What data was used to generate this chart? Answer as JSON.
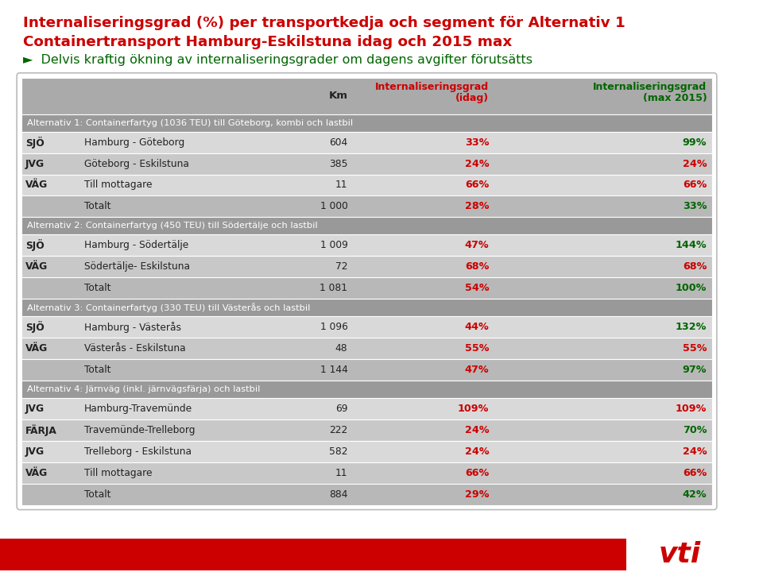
{
  "title_line1": "Internaliseringsgrad (%) per transportkedja och segment för Alternativ 1",
  "title_line2": "Containertransport Hamburg-Eskilstuna idag och 2015 max",
  "subtitle": "►  Delvis kraftig ökning av internaliseringsgrader om dagens avgifter förutsätts",
  "title_color": "#cc0000",
  "subtitle_color": "#006600",
  "header_col4_line1": "Internaliseringsgrad",
  "header_col4_line2": "(idag)",
  "header_col5_line1": "Internaliseringsgrad",
  "header_col5_line2": "(max 2015)",
  "header_col4_color": "#cc0000",
  "header_col5_color": "#006600",
  "section_bg": "#999999",
  "sections": [
    {
      "title": "Alternativ 1: Containerfartyg (1036 TEU) till Göteborg, kombi och lastbil",
      "rows": [
        {
          "col1": "SJÖ",
          "col2": "Hamburg - Göteborg",
          "km": "604",
          "idag": "33%",
          "max2015": "99%",
          "idag_color": "#cc0000",
          "max_color": "#006600",
          "is_total": false
        },
        {
          "col1": "JVG",
          "col2": "Göteborg - Eskilstuna",
          "km": "385",
          "idag": "24%",
          "max2015": "24%",
          "idag_color": "#cc0000",
          "max_color": "#cc0000",
          "is_total": false
        },
        {
          "col1": "VÄG",
          "col2": "Till mottagare",
          "km": "11",
          "idag": "66%",
          "max2015": "66%",
          "idag_color": "#cc0000",
          "max_color": "#cc0000",
          "is_total": false
        },
        {
          "col1": "",
          "col2": "Totalt",
          "km": "1 000",
          "idag": "28%",
          "max2015": "33%",
          "idag_color": "#cc0000",
          "max_color": "#006600",
          "is_total": true
        }
      ]
    },
    {
      "title": "Alternativ 2: Containerfartyg (450 TEU) till Södertälje och lastbil",
      "rows": [
        {
          "col1": "SJÖ",
          "col2": "Hamburg - Södertälje",
          "km": "1 009",
          "idag": "47%",
          "max2015": "144%",
          "idag_color": "#cc0000",
          "max_color": "#006600",
          "is_total": false
        },
        {
          "col1": "VÄG",
          "col2": "Södertälje- Eskilstuna",
          "km": "72",
          "idag": "68%",
          "max2015": "68%",
          "idag_color": "#cc0000",
          "max_color": "#cc0000",
          "is_total": false
        },
        {
          "col1": "",
          "col2": "Totalt",
          "km": "1 081",
          "idag": "54%",
          "max2015": "100%",
          "idag_color": "#cc0000",
          "max_color": "#006600",
          "is_total": true
        }
      ]
    },
    {
      "title": "Alternativ 3: Containerfartyg (330 TEU) till Västerås och lastbil",
      "rows": [
        {
          "col1": "SJÖ",
          "col2": "Hamburg - Västerås",
          "km": "1 096",
          "idag": "44%",
          "max2015": "132%",
          "idag_color": "#cc0000",
          "max_color": "#006600",
          "is_total": false
        },
        {
          "col1": "VÄG",
          "col2": "Västerås - Eskilstuna",
          "km": "48",
          "idag": "55%",
          "max2015": "55%",
          "idag_color": "#cc0000",
          "max_color": "#cc0000",
          "is_total": false
        },
        {
          "col1": "",
          "col2": "Totalt",
          "km": "1 144",
          "idag": "47%",
          "max2015": "97%",
          "idag_color": "#cc0000",
          "max_color": "#006600",
          "is_total": true
        }
      ]
    },
    {
      "title": "Alternativ 4: Järnväg (inkl. järnvägsfärja) och lastbil",
      "rows": [
        {
          "col1": "JVG",
          "col2": "Hamburg-Travemünde",
          "km": "69",
          "idag": "109%",
          "max2015": "109%",
          "idag_color": "#cc0000",
          "max_color": "#cc0000",
          "is_total": false
        },
        {
          "col1": "FÄRJA",
          "col2": "Travemünde-Trelleborg",
          "km": "222",
          "idag": "24%",
          "max2015": "70%",
          "idag_color": "#cc0000",
          "max_color": "#006600",
          "is_total": false
        },
        {
          "col1": "JVG",
          "col2": "Trelleborg - Eskilstuna",
          "km": "582",
          "idag": "24%",
          "max2015": "24%",
          "idag_color": "#cc0000",
          "max_color": "#cc0000",
          "is_total": false
        },
        {
          "col1": "VÄG",
          "col2": "Till mottagare",
          "km": "11",
          "idag": "66%",
          "max2015": "66%",
          "idag_color": "#cc0000",
          "max_color": "#cc0000",
          "is_total": false
        },
        {
          "col1": "",
          "col2": "Totalt",
          "km": "884",
          "idag": "29%",
          "max2015": "42%",
          "idag_color": "#cc0000",
          "max_color": "#006600",
          "is_total": true
        }
      ]
    }
  ],
  "bg_color": "#ffffff",
  "footer_color": "#cc0000",
  "vti_color": "#cc0000"
}
